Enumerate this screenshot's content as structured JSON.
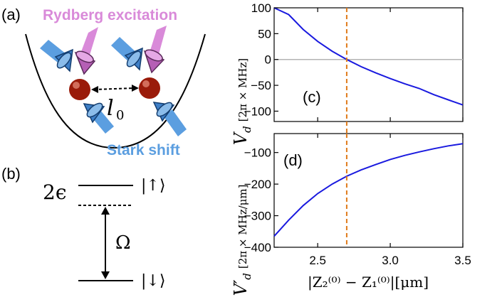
{
  "figure": {
    "panel_a_label": "(a)",
    "panel_b_label": "(b)",
    "panel_c_label": "(c)",
    "panel_d_label": "(d)",
    "rydberg_label": "Rydberg excitation",
    "stark_label": "Stark shift",
    "distance_label": "l",
    "distance_sub": "0",
    "level_gap_label": "2ϵ",
    "omega_label": "Ω",
    "state_up_label": "|↑⟩",
    "state_down_label": "|↓⟩",
    "colors": {
      "rydberg": "#d98ad9",
      "stark": "#5b9ee0",
      "atom": "#9a1b0a",
      "curve": "#1a1adf",
      "dashed_marker": "#e07b1a",
      "zero_line": "#b3b3b3"
    }
  },
  "chart_data": [
    {
      "panel": "(c)",
      "type": "line",
      "ylabel_main": "V",
      "ylabel_sub": "d",
      "ylabel_unit": "[2π × MHz]",
      "xlim": [
        2.2,
        3.5
      ],
      "ylim": [
        -120,
        100
      ],
      "yticks": [
        100,
        50,
        0,
        -50,
        -100
      ],
      "ytick_labels": [
        "100",
        "50",
        "0",
        "−50",
        "−100"
      ],
      "xticks": [
        2.5,
        3.0,
        3.5
      ],
      "reference_hline": 0,
      "vline_x": 2.7,
      "series": [
        {
          "x": [
            2.2,
            2.3,
            2.4,
            2.5,
            2.6,
            2.7,
            2.8,
            2.9,
            3.0,
            3.1,
            3.2,
            3.3,
            3.4,
            3.5
          ],
          "y": [
            127,
            87,
            58,
            35,
            16,
            0,
            -14,
            -26,
            -37,
            -47,
            -56,
            -68,
            -78,
            -88
          ]
        }
      ]
    },
    {
      "panel": "(d)",
      "type": "line",
      "ylabel_main": "V′",
      "ylabel_sub": "d",
      "ylabel_unit": "[2π × MHz/μm]",
      "xlabel": "|Z₂⁽⁰⁾ − Z₁⁽⁰⁾|[μm]",
      "xlim": [
        2.2,
        3.5
      ],
      "ylim": [
        -400,
        -40
      ],
      "yticks": [
        -100,
        -200,
        -300,
        -400
      ],
      "ytick_labels": [
        "−100",
        "−200",
        "−300",
        "−400"
      ],
      "xticks": [
        2.5,
        3.0,
        3.5
      ],
      "xtick_labels": [
        "2.5",
        "3.0",
        "3.5"
      ],
      "vline_x": 2.7,
      "series": [
        {
          "x": [
            2.2,
            2.3,
            2.4,
            2.5,
            2.6,
            2.7,
            2.8,
            2.9,
            3.0,
            3.1,
            3.2,
            3.3,
            3.4,
            3.5
          ],
          "y": [
            -365,
            -314,
            -268,
            -230,
            -200,
            -175,
            -155,
            -138,
            -122,
            -109,
            -98,
            -88,
            -79,
            -72
          ]
        }
      ]
    }
  ]
}
